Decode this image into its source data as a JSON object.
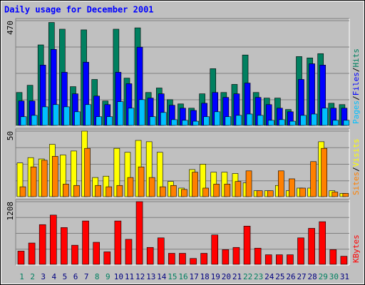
{
  "chart_data": [
    {
      "type": "bar",
      "title": "Daily usage for December 2001",
      "ylim": [
        0,
        470
      ],
      "yticks": [
        470
      ],
      "legend_separator": "/",
      "series": [
        {
          "name": "Hits",
          "color": "#008060",
          "values": [
            150,
            182,
            362,
            462,
            432,
            176,
            429,
            208,
            112,
            432,
            214,
            438,
            150,
            170,
            118,
            99,
            80,
            144,
            256,
            150,
            186,
            317,
            150,
            125,
            125,
            74,
            310,
            304,
            323,
            102,
            96
          ]
        },
        {
          "name": "Files",
          "color": "#0000ff",
          "values": [
            112,
            112,
            272,
            342,
            240,
            144,
            285,
            134,
            96,
            240,
            189,
            352,
            125,
            144,
            93,
            80,
            70,
            102,
            150,
            128,
            144,
            192,
            128,
            96,
            80,
            64,
            208,
            278,
            272,
            80,
            80
          ]
        },
        {
          "name": "Pages",
          "color": "#00c0ff",
          "values": [
            42,
            48,
            86,
            96,
            86,
            64,
            96,
            42,
            42,
            109,
            80,
            118,
            42,
            61,
            29,
            26,
            22,
            42,
            64,
            42,
            48,
            54,
            48,
            26,
            29,
            22,
            48,
            54,
            80,
            26,
            26
          ]
        }
      ]
    },
    {
      "type": "bar",
      "ylim": [
        0,
        50
      ],
      "yticks": [
        50
      ],
      "legend_separator": "/",
      "series": [
        {
          "name": "Visits",
          "color": "#ffff00",
          "values": [
            26,
            30,
            29,
            40,
            32,
            35,
            50,
            15,
            16,
            37,
            34,
            43,
            42,
            34,
            12,
            7,
            21,
            25,
            19,
            19,
            18,
            11,
            5,
            5,
            9,
            5,
            7,
            7,
            42,
            5,
            3
          ]
        },
        {
          "name": "Sites",
          "color": "#ff8000",
          "values": [
            8,
            23,
            28,
            31,
            10,
            9,
            37,
            9,
            8,
            9,
            15,
            23,
            15,
            8,
            9,
            6,
            19,
            7,
            10,
            10,
            12,
            20,
            5,
            5,
            20,
            14,
            7,
            27,
            37,
            4,
            3
          ]
        }
      ]
    },
    {
      "type": "bar",
      "ylim": [
        0,
        1208
      ],
      "yticks": [
        1208
      ],
      "categories": [
        "1",
        "2",
        "3",
        "4",
        "5",
        "6",
        "7",
        "8",
        "9",
        "10",
        "11",
        "12",
        "13",
        "14",
        "15",
        "16",
        "17",
        "18",
        "19",
        "20",
        "21",
        "22",
        "23",
        "24",
        "25",
        "26",
        "27",
        "28",
        "29",
        "30",
        "31"
      ],
      "category_colors": [
        "#008060",
        "#008060",
        "#000080",
        "#000080",
        "#000080",
        "#000080",
        "#000080",
        "#008060",
        "#008060",
        "#000080",
        "#000080",
        "#000080",
        "#000080",
        "#000080",
        "#008060",
        "#008060",
        "#000080",
        "#000080",
        "#000080",
        "#000080",
        "#000080",
        "#008060",
        "#008060",
        "#000080",
        "#000080",
        "#000080",
        "#000080",
        "#000080",
        "#008060",
        "#008060",
        "#000080"
      ],
      "series": [
        {
          "name": "KBytes",
          "color": "#ff0000",
          "values": [
            266,
            420,
            770,
            952,
            714,
            378,
            840,
            434,
            252,
            840,
            490,
            1208,
            336,
            518,
            224,
            224,
            126,
            224,
            574,
            294,
            336,
            742,
            322,
            196,
            196,
            196,
            518,
            700,
            826,
            294,
            168
          ]
        }
      ]
    }
  ]
}
